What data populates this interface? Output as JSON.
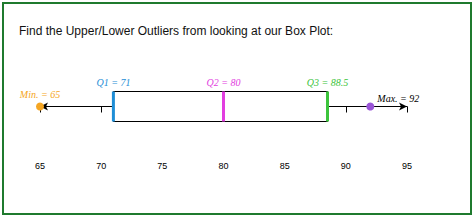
{
  "chart_data": {
    "type": "boxplot",
    "title": "Find the Upper/Lower Outliers from looking at our Box Plot:",
    "orientation": "horizontal",
    "values": [
      65,
      71,
      80,
      88.5,
      92
    ],
    "color": "#000000",
    "colors": [
      "#f5a623",
      "#1f8ed6",
      "#e23ee0",
      "#3cc43c",
      "#9a55d8"
    ],
    "annotations": [
      {
        "text": "Min. = 65",
        "value": 65,
        "color": "#f5a623"
      },
      {
        "text": "Q1 = 71",
        "value": 71,
        "color": "#1f8ed6"
      },
      {
        "text": "Q2 = 80",
        "value": 80,
        "color": "#e23ee0"
      },
      {
        "text": "Q3 = 88.5",
        "value": 88.5,
        "color": "#3cc43c"
      },
      {
        "text": "Max. = 92",
        "value": 92,
        "color": "#000000"
      }
    ],
    "xlim": [
      65,
      95
    ],
    "xticks": [
      65,
      70,
      75,
      80,
      85,
      90,
      95
    ],
    "tick_labels": "x",
    "grid": false
  }
}
